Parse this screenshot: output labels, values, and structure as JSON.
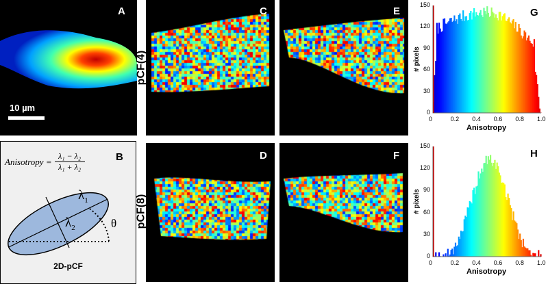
{
  "panels": {
    "A": {
      "letter": "A",
      "scale_bar_label": "10 µm"
    },
    "B": {
      "letter": "B",
      "formula_lhs": "Anisotropy =",
      "numerator": "λ₁ − λ₂",
      "denominator": "λ₁ + λ₂",
      "lambda1": "λ",
      "lambda1_sub": "1",
      "lambda2": "λ",
      "lambda2_sub": "2",
      "theta": "θ",
      "caption": "2D-pCF"
    },
    "C": {
      "letter": "C"
    },
    "D": {
      "letter": "D"
    },
    "E": {
      "letter": "E"
    },
    "F": {
      "letter": "F"
    }
  },
  "row_labels": {
    "top": "pCF(4)",
    "bottom": "pCF(8)"
  },
  "histograms": [
    {
      "letter": "G",
      "ylabel": "# pixels",
      "xlabel": "Anisotropy",
      "yticks": [
        "0",
        "30",
        "60",
        "90",
        "120",
        "150"
      ],
      "xticks": [
        "0",
        "0.2",
        "0.4",
        "0.6",
        "0.8",
        "1.0"
      ]
    },
    {
      "letter": "H",
      "ylabel": "# pixels",
      "xlabel": "Anisotropy",
      "yticks": [
        "0",
        "30",
        "60",
        "90",
        "120",
        "150"
      ],
      "xticks": [
        "0",
        "0.2",
        "0.4",
        "0.6",
        "0.8",
        "1.0"
      ]
    }
  ],
  "colors": {
    "jet_low": "#00008f",
    "jet_high": "#800000",
    "background": "#000000"
  }
}
